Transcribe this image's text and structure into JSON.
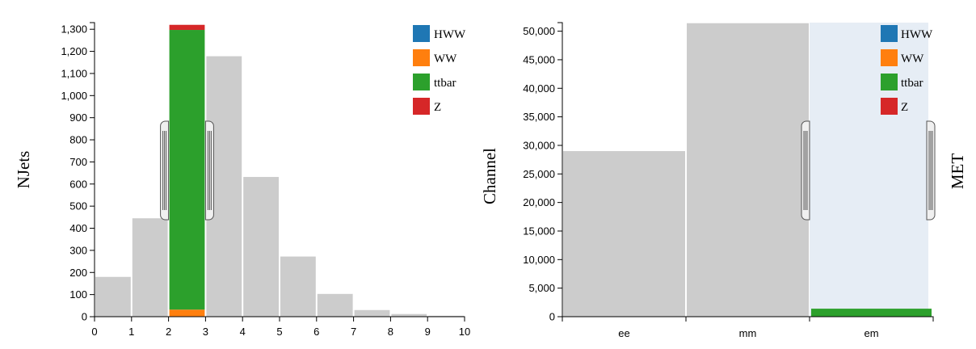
{
  "chart_data": [
    {
      "type": "bar",
      "ylabel": "NJets",
      "xlabel": "",
      "x_ticks": [
        0,
        1,
        2,
        3,
        4,
        5,
        6,
        7,
        8,
        9,
        10
      ],
      "y_ticks": [
        "0",
        "100",
        "200",
        "300",
        "400",
        "500",
        "600",
        "700",
        "800",
        "900",
        "1,000",
        "1,100",
        "1,200",
        "1,300"
      ],
      "ylim": [
        0,
        1330
      ],
      "xlim": [
        0,
        10
      ],
      "bins": [
        {
          "x0": 0,
          "x1": 1,
          "value": 180
        },
        {
          "x0": 1,
          "x1": 2,
          "value": 445
        },
        {
          "x0": 2,
          "x1": 3,
          "value": 1320,
          "selected": true
        },
        {
          "x0": 3,
          "x1": 4,
          "value": 1178
        },
        {
          "x0": 4,
          "x1": 5,
          "value": 632
        },
        {
          "x0": 5,
          "x1": 6,
          "value": 272
        },
        {
          "x0": 6,
          "x1": 7,
          "value": 103
        },
        {
          "x0": 7,
          "x1": 8,
          "value": 30
        },
        {
          "x0": 8,
          "x1": 9,
          "value": 12
        },
        {
          "x0": 9,
          "x1": 10,
          "value": 4
        }
      ],
      "selected_stack": [
        {
          "series": "HWW",
          "value": 2
        },
        {
          "series": "WW",
          "value": 30
        },
        {
          "series": "ttbar",
          "value": 1265
        },
        {
          "series": "Z",
          "value": 23
        }
      ],
      "brush": {
        "from": 2,
        "to": 3
      },
      "legend": [
        {
          "name": "HWW",
          "color": "#1f77b4"
        },
        {
          "name": "WW",
          "color": "#ff7f0e"
        },
        {
          "name": "ttbar",
          "color": "#2ca02c"
        },
        {
          "name": "Z",
          "color": "#d62728"
        }
      ],
      "legend_position": "top-right"
    },
    {
      "type": "bar",
      "ylabel": "Channel",
      "right_label": "MET",
      "xlabel": "",
      "categories": [
        "ee",
        "mm",
        "em"
      ],
      "values": [
        29000,
        51400,
        51400
      ],
      "y_ticks": [
        "0",
        "5,000",
        "10,000",
        "15,000",
        "20,000",
        "25,000",
        "30,000",
        "35,000",
        "40,000",
        "45,000",
        "50,000"
      ],
      "ylim": [
        0,
        51500
      ],
      "brush_category": "em",
      "em_stack": [
        {
          "series": "ttbar",
          "value": 1400
        }
      ],
      "legend": [
        {
          "name": "HWW",
          "color": "#1f77b4"
        },
        {
          "name": "WW",
          "color": "#ff7f0e"
        },
        {
          "name": "ttbar",
          "color": "#2ca02c"
        },
        {
          "name": "Z",
          "color": "#d62728"
        }
      ],
      "legend_position": "top-right"
    }
  ],
  "colors": {
    "bar_gray": "#cccccc",
    "brush_fill": "#e6edf5"
  }
}
